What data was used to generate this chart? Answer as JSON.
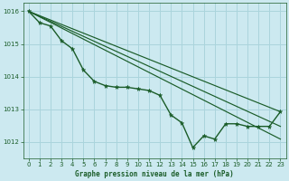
{
  "background_color": "#cce9f0",
  "grid_color": "#aad4dc",
  "line_color": "#1a5c28",
  "xlabel": "Graphe pression niveau de la mer (hPa)",
  "ylim": [
    1011.5,
    1016.25
  ],
  "xlim": [
    -0.5,
    23.5
  ],
  "yticks": [
    1012,
    1013,
    1014,
    1015,
    1016
  ],
  "xticks": [
    0,
    1,
    2,
    3,
    4,
    5,
    6,
    7,
    8,
    9,
    10,
    11,
    12,
    13,
    14,
    15,
    16,
    17,
    18,
    19,
    20,
    21,
    22,
    23
  ],
  "series": [
    {
      "x": [
        0,
        1,
        2,
        3,
        4,
        5,
        6,
        7,
        8,
        9,
        10,
        11,
        12,
        13,
        14,
        15,
        16,
        17,
        18,
        19,
        20,
        21,
        22,
        23
      ],
      "y": [
        1016.0,
        1015.65,
        1015.55,
        1015.1,
        1014.85,
        1014.2,
        1013.85,
        1013.72,
        1013.67,
        1013.67,
        1013.62,
        1013.57,
        1013.42,
        1012.82,
        1012.58,
        1011.82,
        1012.18,
        1012.08,
        1012.55,
        1012.55,
        1012.47,
        1012.47,
        1012.47,
        1012.92
      ],
      "marker": true,
      "linewidth": 1.0,
      "markersize": 3.5
    },
    {
      "x": [
        0,
        23
      ],
      "y": [
        1016.0,
        1012.92
      ],
      "marker": false,
      "linewidth": 0.85
    },
    {
      "x": [
        0,
        23
      ],
      "y": [
        1016.0,
        1012.47
      ],
      "marker": false,
      "linewidth": 0.85
    },
    {
      "x": [
        0,
        23
      ],
      "y": [
        1016.0,
        1012.08
      ],
      "marker": false,
      "linewidth": 0.85
    }
  ]
}
